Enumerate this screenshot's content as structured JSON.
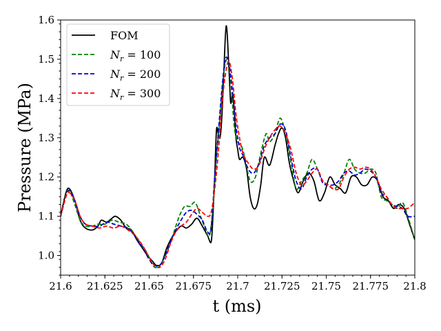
{
  "chart_data": {
    "type": "line",
    "title": "",
    "xlabel": "t (ms)",
    "ylabel": "Pressure (MPa)",
    "xlim": [
      21.6,
      21.8
    ],
    "ylim": [
      0.95,
      1.6
    ],
    "x_ticks": [
      21.6,
      21.625,
      21.65,
      21.675,
      21.7,
      21.725,
      21.75,
      21.775,
      21.8
    ],
    "x_tick_labels": [
      "21.6",
      "21.625",
      "21.65",
      "21.675",
      "21.7",
      "21.725",
      "21.75",
      "21.775",
      "21.8"
    ],
    "y_ticks": [
      1.0,
      1.1,
      1.2,
      1.3,
      1.4,
      1.5,
      1.6
    ],
    "y_tick_labels": [
      "1.0",
      "1.1",
      "1.2",
      "1.3",
      "1.4",
      "1.5",
      "1.6"
    ],
    "grid": false,
    "legend_position": "top-left",
    "series": [
      {
        "name": "FOM",
        "color": "#000000",
        "style": "solid",
        "points": [
          [
            21.6,
            1.1
          ],
          [
            21.603,
            1.16
          ],
          [
            21.605,
            1.17
          ],
          [
            21.608,
            1.14
          ],
          [
            21.611,
            1.09
          ],
          [
            21.614,
            1.07
          ],
          [
            21.618,
            1.065
          ],
          [
            21.621,
            1.075
          ],
          [
            21.623,
            1.09
          ],
          [
            21.626,
            1.085
          ],
          [
            21.629,
            1.095
          ],
          [
            21.631,
            1.1
          ],
          [
            21.634,
            1.09
          ],
          [
            21.637,
            1.07
          ],
          [
            21.64,
            1.065
          ],
          [
            21.643,
            1.04
          ],
          [
            21.646,
            1.02
          ],
          [
            21.649,
            1.0
          ],
          [
            21.652,
            0.985
          ],
          [
            21.654,
            0.975
          ],
          [
            21.657,
            0.98
          ],
          [
            21.66,
            1.02
          ],
          [
            21.664,
            1.055
          ],
          [
            21.668,
            1.075
          ],
          [
            21.671,
            1.07
          ],
          [
            21.674,
            1.08
          ],
          [
            21.677,
            1.095
          ],
          [
            21.68,
            1.075
          ],
          [
            21.683,
            1.05
          ],
          [
            21.685,
            1.035
          ],
          [
            21.686,
            1.1
          ],
          [
            21.687,
            1.2
          ],
          [
            21.688,
            1.32
          ],
          [
            21.689,
            1.31
          ],
          [
            21.69,
            1.3
          ],
          [
            21.691,
            1.35
          ],
          [
            21.692,
            1.45
          ],
          [
            21.6935,
            1.585
          ],
          [
            21.695,
            1.48
          ],
          [
            21.696,
            1.39
          ],
          [
            21.697,
            1.41
          ],
          [
            21.698,
            1.37
          ],
          [
            21.699,
            1.3
          ],
          [
            21.7,
            1.27
          ],
          [
            21.701,
            1.245
          ],
          [
            21.703,
            1.25
          ],
          [
            21.705,
            1.22
          ],
          [
            21.707,
            1.15
          ],
          [
            21.709,
            1.12
          ],
          [
            21.711,
            1.13
          ],
          [
            21.713,
            1.18
          ],
          [
            21.715,
            1.25
          ],
          [
            21.718,
            1.23
          ],
          [
            21.721,
            1.28
          ],
          [
            21.723,
            1.31
          ],
          [
            21.725,
            1.325
          ],
          [
            21.727,
            1.3
          ],
          [
            21.729,
            1.24
          ],
          [
            21.731,
            1.2
          ],
          [
            21.734,
            1.16
          ],
          [
            21.737,
            1.19
          ],
          [
            21.74,
            1.21
          ],
          [
            21.743,
            1.19
          ],
          [
            21.746,
            1.14
          ],
          [
            21.749,
            1.16
          ],
          [
            21.752,
            1.2
          ],
          [
            21.755,
            1.18
          ],
          [
            21.758,
            1.17
          ],
          [
            21.761,
            1.16
          ],
          [
            21.764,
            1.2
          ],
          [
            21.767,
            1.2
          ],
          [
            21.77,
            1.18
          ],
          [
            21.773,
            1.18
          ],
          [
            21.776,
            1.2
          ],
          [
            21.779,
            1.19
          ],
          [
            21.782,
            1.15
          ],
          [
            21.785,
            1.14
          ],
          [
            21.788,
            1.12
          ],
          [
            21.791,
            1.13
          ],
          [
            21.794,
            1.12
          ],
          [
            21.797,
            1.08
          ],
          [
            21.8,
            1.04
          ]
        ]
      },
      {
        "name": "N_r = 100",
        "color": "#008000",
        "style": "dashed",
        "points": [
          [
            21.6,
            1.1
          ],
          [
            21.603,
            1.155
          ],
          [
            21.605,
            1.165
          ],
          [
            21.608,
            1.13
          ],
          [
            21.611,
            1.09
          ],
          [
            21.614,
            1.075
          ],
          [
            21.618,
            1.075
          ],
          [
            21.621,
            1.08
          ],
          [
            21.625,
            1.08
          ],
          [
            21.629,
            1.09
          ],
          [
            21.633,
            1.085
          ],
          [
            21.637,
            1.08
          ],
          [
            21.64,
            1.065
          ],
          [
            21.643,
            1.045
          ],
          [
            21.646,
            1.025
          ],
          [
            21.649,
            1.005
          ],
          [
            21.652,
            0.975
          ],
          [
            21.655,
            0.97
          ],
          [
            21.658,
            0.99
          ],
          [
            21.661,
            1.02
          ],
          [
            21.664,
            1.06
          ],
          [
            21.667,
            1.1
          ],
          [
            21.67,
            1.125
          ],
          [
            21.673,
            1.125
          ],
          [
            21.676,
            1.135
          ],
          [
            21.679,
            1.1
          ],
          [
            21.682,
            1.065
          ],
          [
            21.684,
            1.05
          ],
          [
            21.686,
            1.12
          ],
          [
            21.688,
            1.25
          ],
          [
            21.69,
            1.35
          ],
          [
            21.692,
            1.46
          ],
          [
            21.694,
            1.5
          ],
          [
            21.696,
            1.45
          ],
          [
            21.698,
            1.33
          ],
          [
            21.7,
            1.29
          ],
          [
            21.702,
            1.28
          ],
          [
            21.704,
            1.25
          ],
          [
            21.707,
            1.19
          ],
          [
            21.71,
            1.2
          ],
          [
            21.713,
            1.26
          ],
          [
            21.716,
            1.31
          ],
          [
            21.718,
            1.29
          ],
          [
            21.721,
            1.31
          ],
          [
            21.724,
            1.35
          ],
          [
            21.727,
            1.31
          ],
          [
            21.73,
            1.24
          ],
          [
            21.733,
            1.17
          ],
          [
            21.736,
            1.19
          ],
          [
            21.739,
            1.21
          ],
          [
            21.742,
            1.245
          ],
          [
            21.745,
            1.22
          ],
          [
            21.748,
            1.19
          ],
          [
            21.751,
            1.18
          ],
          [
            21.754,
            1.17
          ],
          [
            21.757,
            1.18
          ],
          [
            21.76,
            1.21
          ],
          [
            21.763,
            1.245
          ],
          [
            21.766,
            1.22
          ],
          [
            21.769,
            1.21
          ],
          [
            21.772,
            1.21
          ],
          [
            21.775,
            1.22
          ],
          [
            21.778,
            1.21
          ],
          [
            21.781,
            1.15
          ],
          [
            21.784,
            1.14
          ],
          [
            21.787,
            1.13
          ],
          [
            21.79,
            1.12
          ],
          [
            21.793,
            1.135
          ],
          [
            21.796,
            1.1
          ],
          [
            21.8,
            1.04
          ]
        ]
      },
      {
        "name": "N_r = 200",
        "color": "#0000cc",
        "style": "dashed",
        "points": [
          [
            21.6,
            1.1
          ],
          [
            21.603,
            1.15
          ],
          [
            21.605,
            1.165
          ],
          [
            21.608,
            1.14
          ],
          [
            21.611,
            1.1
          ],
          [
            21.614,
            1.08
          ],
          [
            21.618,
            1.075
          ],
          [
            21.622,
            1.075
          ],
          [
            21.626,
            1.085
          ],
          [
            21.63,
            1.08
          ],
          [
            21.634,
            1.075
          ],
          [
            21.638,
            1.07
          ],
          [
            21.641,
            1.055
          ],
          [
            21.644,
            1.035
          ],
          [
            21.647,
            1.015
          ],
          [
            21.65,
            0.99
          ],
          [
            21.653,
            0.975
          ],
          [
            21.656,
            0.975
          ],
          [
            21.659,
            1.0
          ],
          [
            21.662,
            1.035
          ],
          [
            21.665,
            1.065
          ],
          [
            21.668,
            1.09
          ],
          [
            21.671,
            1.11
          ],
          [
            21.674,
            1.115
          ],
          [
            21.677,
            1.105
          ],
          [
            21.68,
            1.09
          ],
          [
            21.683,
            1.06
          ],
          [
            21.685,
            1.07
          ],
          [
            21.687,
            1.2
          ],
          [
            21.689,
            1.31
          ],
          [
            21.691,
            1.42
          ],
          [
            21.693,
            1.5
          ],
          [
            21.695,
            1.49
          ],
          [
            21.697,
            1.42
          ],
          [
            21.699,
            1.33
          ],
          [
            21.701,
            1.275
          ],
          [
            21.703,
            1.255
          ],
          [
            21.706,
            1.22
          ],
          [
            21.709,
            1.21
          ],
          [
            21.712,
            1.235
          ],
          [
            21.715,
            1.28
          ],
          [
            21.718,
            1.3
          ],
          [
            21.721,
            1.31
          ],
          [
            21.724,
            1.335
          ],
          [
            21.727,
            1.32
          ],
          [
            21.73,
            1.25
          ],
          [
            21.733,
            1.19
          ],
          [
            21.736,
            1.17
          ],
          [
            21.739,
            1.2
          ],
          [
            21.742,
            1.22
          ],
          [
            21.745,
            1.22
          ],
          [
            21.748,
            1.185
          ],
          [
            21.751,
            1.18
          ],
          [
            21.754,
            1.18
          ],
          [
            21.757,
            1.19
          ],
          [
            21.76,
            1.21
          ],
          [
            21.763,
            1.215
          ],
          [
            21.766,
            1.205
          ],
          [
            21.769,
            1.21
          ],
          [
            21.772,
            1.22
          ],
          [
            21.775,
            1.215
          ],
          [
            21.778,
            1.2
          ],
          [
            21.781,
            1.16
          ],
          [
            21.784,
            1.15
          ],
          [
            21.787,
            1.13
          ],
          [
            21.79,
            1.125
          ],
          [
            21.793,
            1.12
          ],
          [
            21.796,
            1.1
          ],
          [
            21.8,
            1.1
          ]
        ]
      },
      {
        "name": "N_r = 300",
        "color": "#ff0000",
        "style": "dashed",
        "points": [
          [
            21.6,
            1.1
          ],
          [
            21.603,
            1.15
          ],
          [
            21.605,
            1.16
          ],
          [
            21.608,
            1.14
          ],
          [
            21.611,
            1.1
          ],
          [
            21.614,
            1.08
          ],
          [
            21.618,
            1.075
          ],
          [
            21.622,
            1.07
          ],
          [
            21.626,
            1.075
          ],
          [
            21.63,
            1.07
          ],
          [
            21.634,
            1.075
          ],
          [
            21.638,
            1.065
          ],
          [
            21.641,
            1.055
          ],
          [
            21.644,
            1.04
          ],
          [
            21.647,
            1.02
          ],
          [
            21.65,
            0.995
          ],
          [
            21.653,
            0.975
          ],
          [
            21.656,
            0.97
          ],
          [
            21.659,
            0.99
          ],
          [
            21.662,
            1.03
          ],
          [
            21.665,
            1.06
          ],
          [
            21.668,
            1.075
          ],
          [
            21.671,
            1.085
          ],
          [
            21.674,
            1.105
          ],
          [
            21.677,
            1.12
          ],
          [
            21.68,
            1.11
          ],
          [
            21.683,
            1.1
          ],
          [
            21.685,
            1.11
          ],
          [
            21.687,
            1.17
          ],
          [
            21.689,
            1.26
          ],
          [
            21.691,
            1.38
          ],
          [
            21.693,
            1.46
          ],
          [
            21.695,
            1.495
          ],
          [
            21.697,
            1.45
          ],
          [
            21.699,
            1.36
          ],
          [
            21.701,
            1.3
          ],
          [
            21.703,
            1.26
          ],
          [
            21.706,
            1.235
          ],
          [
            21.709,
            1.22
          ],
          [
            21.712,
            1.23
          ],
          [
            21.715,
            1.27
          ],
          [
            21.718,
            1.3
          ],
          [
            21.721,
            1.32
          ],
          [
            21.724,
            1.33
          ],
          [
            21.727,
            1.31
          ],
          [
            21.73,
            1.27
          ],
          [
            21.733,
            1.21
          ],
          [
            21.736,
            1.18
          ],
          [
            21.739,
            1.19
          ],
          [
            21.742,
            1.21
          ],
          [
            21.745,
            1.22
          ],
          [
            21.748,
            1.19
          ],
          [
            21.751,
            1.18
          ],
          [
            21.754,
            1.17
          ],
          [
            21.757,
            1.17
          ],
          [
            21.76,
            1.2
          ],
          [
            21.763,
            1.22
          ],
          [
            21.766,
            1.225
          ],
          [
            21.769,
            1.22
          ],
          [
            21.772,
            1.225
          ],
          [
            21.775,
            1.22
          ],
          [
            21.778,
            1.2
          ],
          [
            21.781,
            1.17
          ],
          [
            21.784,
            1.15
          ],
          [
            21.787,
            1.13
          ],
          [
            21.79,
            1.12
          ],
          [
            21.793,
            1.12
          ],
          [
            21.796,
            1.12
          ],
          [
            21.8,
            1.135
          ]
        ]
      }
    ]
  },
  "legend": {
    "fom_label": "FOM",
    "nr_prefix": "N",
    "nr_subscript": "r",
    "nr_100": " = 100",
    "nr_200": " = 200",
    "nr_300": " = 300"
  }
}
